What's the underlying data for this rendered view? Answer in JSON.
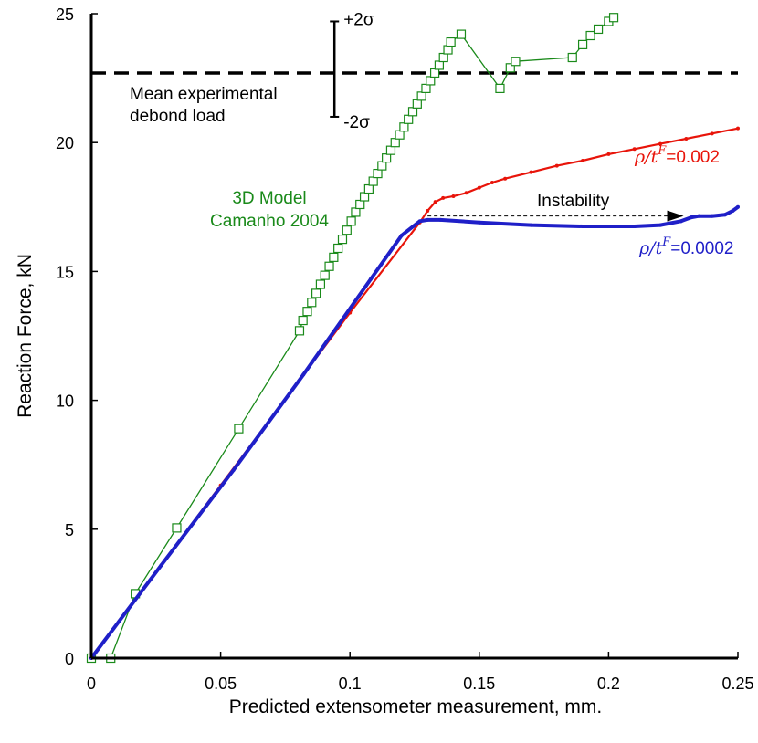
{
  "chart_data": {
    "type": "line",
    "title": "",
    "xlabel": "Predicted extensometer measurement, mm.",
    "ylabel": "Reaction Force, kN",
    "xlim": [
      0,
      0.25
    ],
    "ylim": [
      0,
      25
    ],
    "xticks": [
      0,
      0.05,
      0.1,
      0.15,
      0.2,
      0.25
    ],
    "yticks": [
      0,
      5,
      10,
      15,
      20,
      25
    ],
    "xtick_labels": [
      "0",
      "0.05",
      "0.1",
      "0.15",
      "0.2",
      "0.25"
    ],
    "ytick_labels": [
      "0",
      "5",
      "10",
      "15",
      "20",
      "25"
    ],
    "grid": false,
    "series": [
      {
        "name": "3D Model Camanho 2004",
        "color": "#1a8a1a",
        "marker": "open-square",
        "x": [
          0.0,
          0.0075,
          0.017,
          0.033,
          0.057,
          0.0805,
          0.0818,
          0.0835,
          0.0852,
          0.0869,
          0.0886,
          0.0903,
          0.092,
          0.0937,
          0.0954,
          0.0971,
          0.0988,
          0.1005,
          0.1022,
          0.1039,
          0.1056,
          0.1073,
          0.109,
          0.1107,
          0.1124,
          0.1141,
          0.1158,
          0.1175,
          0.1192,
          0.1209,
          0.1226,
          0.1243,
          0.126,
          0.1277,
          0.1294,
          0.1311,
          0.1328,
          0.1345,
          0.1362,
          0.1379,
          0.139,
          0.143,
          0.158,
          0.162,
          0.164,
          0.186,
          0.19,
          0.193,
          0.196,
          0.2,
          0.202
        ],
        "y": [
          0.0,
          0.0,
          2.5,
          5.05,
          8.9,
          12.7,
          13.1,
          13.45,
          13.8,
          14.15,
          14.5,
          14.85,
          15.2,
          15.55,
          15.9,
          16.25,
          16.6,
          16.95,
          17.3,
          17.6,
          17.9,
          18.2,
          18.5,
          18.8,
          19.1,
          19.4,
          19.7,
          20.0,
          20.3,
          20.6,
          20.9,
          21.2,
          21.5,
          21.8,
          22.1,
          22.4,
          22.7,
          23.0,
          23.3,
          23.6,
          23.9,
          24.2,
          22.1,
          22.9,
          23.15,
          23.3,
          23.8,
          24.15,
          24.4,
          24.7,
          24.85
        ]
      },
      {
        "name": "ρ/t^F=0.002",
        "color": "#e8140a",
        "marker": "small-dot",
        "x": [
          0.0,
          0.05,
          0.1,
          0.127,
          0.13,
          0.133,
          0.136,
          0.14,
          0.145,
          0.15,
          0.155,
          0.16,
          0.17,
          0.18,
          0.19,
          0.2,
          0.21,
          0.22,
          0.23,
          0.24,
          0.25
        ],
        "y": [
          0.0,
          6.7,
          13.4,
          16.9,
          17.35,
          17.7,
          17.85,
          17.92,
          18.05,
          18.25,
          18.45,
          18.6,
          18.85,
          19.1,
          19.3,
          19.55,
          19.75,
          19.95,
          20.15,
          20.35,
          20.55
        ]
      },
      {
        "name": "ρ/t^F=0.0002",
        "color": "#1f1fc8",
        "marker": "small-dot",
        "x": [
          0.0,
          0.027,
          0.055,
          0.082,
          0.108,
          0.12,
          0.127,
          0.13,
          0.135,
          0.15,
          0.17,
          0.19,
          0.21,
          0.22,
          0.228,
          0.232,
          0.235,
          0.24,
          0.245,
          0.248,
          0.25
        ],
        "y": [
          0.0,
          3.6,
          7.3,
          11.0,
          14.7,
          16.4,
          16.95,
          17.0,
          17.0,
          16.9,
          16.8,
          16.75,
          16.75,
          16.8,
          16.95,
          17.1,
          17.15,
          17.15,
          17.2,
          17.35,
          17.5
        ]
      }
    ],
    "reference_line": {
      "label_line1": "Mean experimental",
      "label_line2": "debond load",
      "y": 22.7,
      "style": "dashed",
      "color": "#000000"
    },
    "error_bar": {
      "x": 0.094,
      "y_low": 21.0,
      "y_high": 24.7,
      "upper_label": "+2σ",
      "lower_label": "-2σ"
    },
    "annotations": {
      "model_label_line1": "3D Model",
      "model_label_line2": "Camanho 2004",
      "instability_label": "Instability",
      "instability_arrow": {
        "x_from": 0.13,
        "x_to": 0.229,
        "y": 17.15
      },
      "red_label_prefix": "ρ/t",
      "red_label_sup": "F",
      "red_label_value": "=0.002",
      "blue_label_prefix": "ρ/t",
      "blue_label_sup": "F",
      "blue_label_value": "=0.0002"
    }
  }
}
